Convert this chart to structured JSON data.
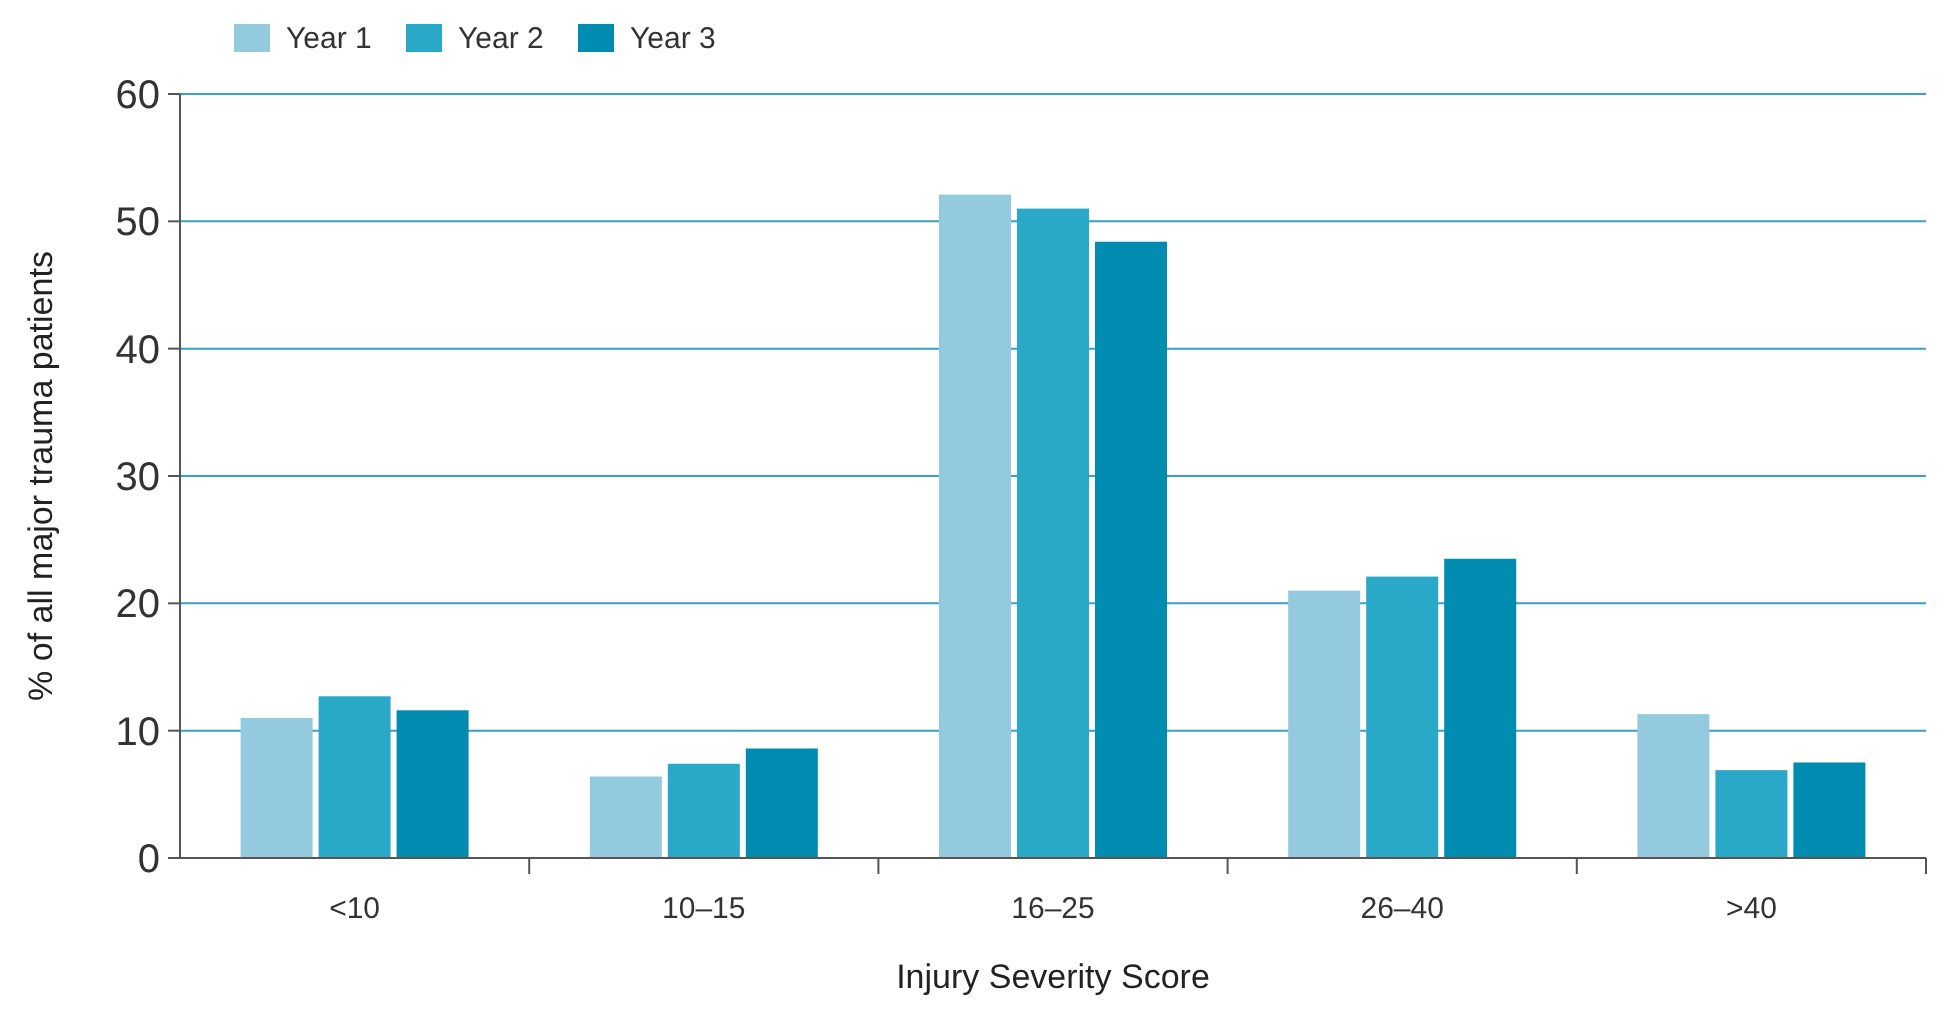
{
  "chart_data": {
    "type": "bar",
    "xlabel": "Injury Severity Score",
    "ylabel": "% of all major trauma patients",
    "categories": [
      "<10",
      "10–15",
      "16–25",
      "26–40",
      ">40"
    ],
    "series": [
      {
        "name": "Year 1",
        "color": "#94cade",
        "values": [
          11.0,
          6.4,
          52.1,
          21.0,
          11.3
        ]
      },
      {
        "name": "Year 2",
        "color": "#2aa8c8",
        "values": [
          12.7,
          7.4,
          51.0,
          22.1,
          6.9
        ]
      },
      {
        "name": "Year 3",
        "color": "#008bb0",
        "values": [
          11.6,
          8.6,
          48.4,
          23.5,
          7.5
        ]
      }
    ],
    "ylim": [
      0,
      60
    ],
    "yticks": [
      0,
      10,
      20,
      30,
      40,
      50,
      60
    ],
    "grid": "y",
    "legend": "top left"
  }
}
